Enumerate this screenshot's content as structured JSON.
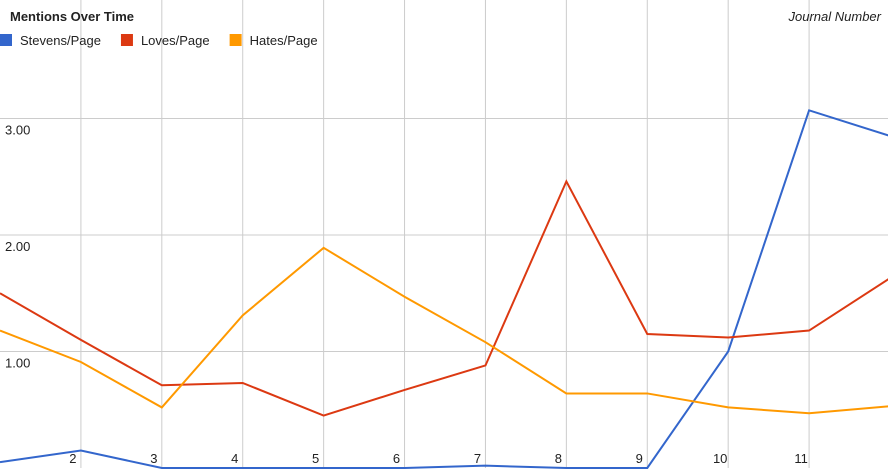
{
  "chart_data": {
    "type": "line",
    "title": "Mentions Over Time",
    "x_label": "Journal Number",
    "x": [
      1,
      2,
      3,
      4,
      5,
      6,
      7,
      8,
      9,
      10,
      11,
      12
    ],
    "series": [
      {
        "name": "Stevens/Page",
        "color": "#3366cc",
        "values": [
          0.05,
          0.15,
          0,
          0,
          0,
          0,
          0.02,
          0,
          0,
          1.0,
          3.07,
          2.85
        ]
      },
      {
        "name": "Loves/Page",
        "color": "#dc3912",
        "values": [
          1.5,
          1.1,
          0.71,
          0.73,
          0.45,
          0.67,
          0.88,
          2.46,
          1.15,
          1.12,
          1.18,
          1.63
        ]
      },
      {
        "name": "Hates/Page",
        "color": "#ff9900",
        "values": [
          1.18,
          0.91,
          0.52,
          1.31,
          1.89,
          1.47,
          1.08,
          0.64,
          0.64,
          0.52,
          0.47,
          0.53
        ]
      }
    ],
    "xlim": [
      1,
      12
    ],
    "xticks": [
      2,
      3,
      4,
      5,
      6,
      7,
      8,
      9,
      10,
      11
    ],
    "ylim": [
      0,
      4
    ],
    "yticks": [
      {
        "value": 1,
        "label": "1.00"
      },
      {
        "value": 2,
        "label": "2.00"
      },
      {
        "value": 3,
        "label": "3.00"
      }
    ],
    "grid": true
  }
}
